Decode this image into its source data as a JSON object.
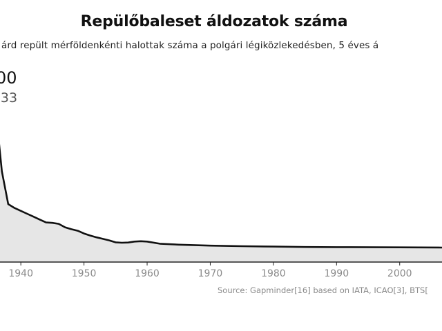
{
  "header": {
    "title": "Repülőbaleset áldozatok száma",
    "subtitle": "árd repült mérföldenkénti  halottak száma a polgári légiközlekedésben, 5 éves á"
  },
  "callout": {
    "value": "00",
    "label": "-33"
  },
  "source": "Source: Gapminder[16] based on IATA, ICAO[3], BTS[",
  "colors": {
    "line": "#111111",
    "area": "#e6e6e6",
    "axis": "#222222",
    "tick_text": "#8a8a8a"
  },
  "chart_data": {
    "type": "area",
    "title": "Repülőbaleset áldozatok száma",
    "xlabel": "",
    "ylabel": "",
    "xlim": [
      1936.7,
      2006.7
    ],
    "ylim": [
      0,
      1000
    ],
    "xticks": [
      "1940",
      "1950",
      "1960",
      "1970",
      "1980",
      "1990",
      "2000"
    ],
    "grid": false,
    "x": [
      1936.5,
      1937,
      1938,
      1939,
      1940,
      1941,
      1942,
      1943,
      1944,
      1945,
      1946,
      1947,
      1948,
      1949,
      1950,
      1951,
      1952,
      1953,
      1954,
      1955,
      1956,
      1957,
      1958,
      1959,
      1960,
      1962,
      1965,
      1970,
      1975,
      1980,
      1985,
      1990,
      2000,
      2006.7
    ],
    "values": [
      630,
      470,
      300,
      280,
      265,
      250,
      235,
      220,
      205,
      203,
      198,
      180,
      170,
      162,
      148,
      137,
      128,
      120,
      112,
      102,
      100,
      101,
      106,
      108,
      106,
      95,
      90,
      85,
      82,
      80,
      78,
      77,
      76,
      75
    ]
  }
}
